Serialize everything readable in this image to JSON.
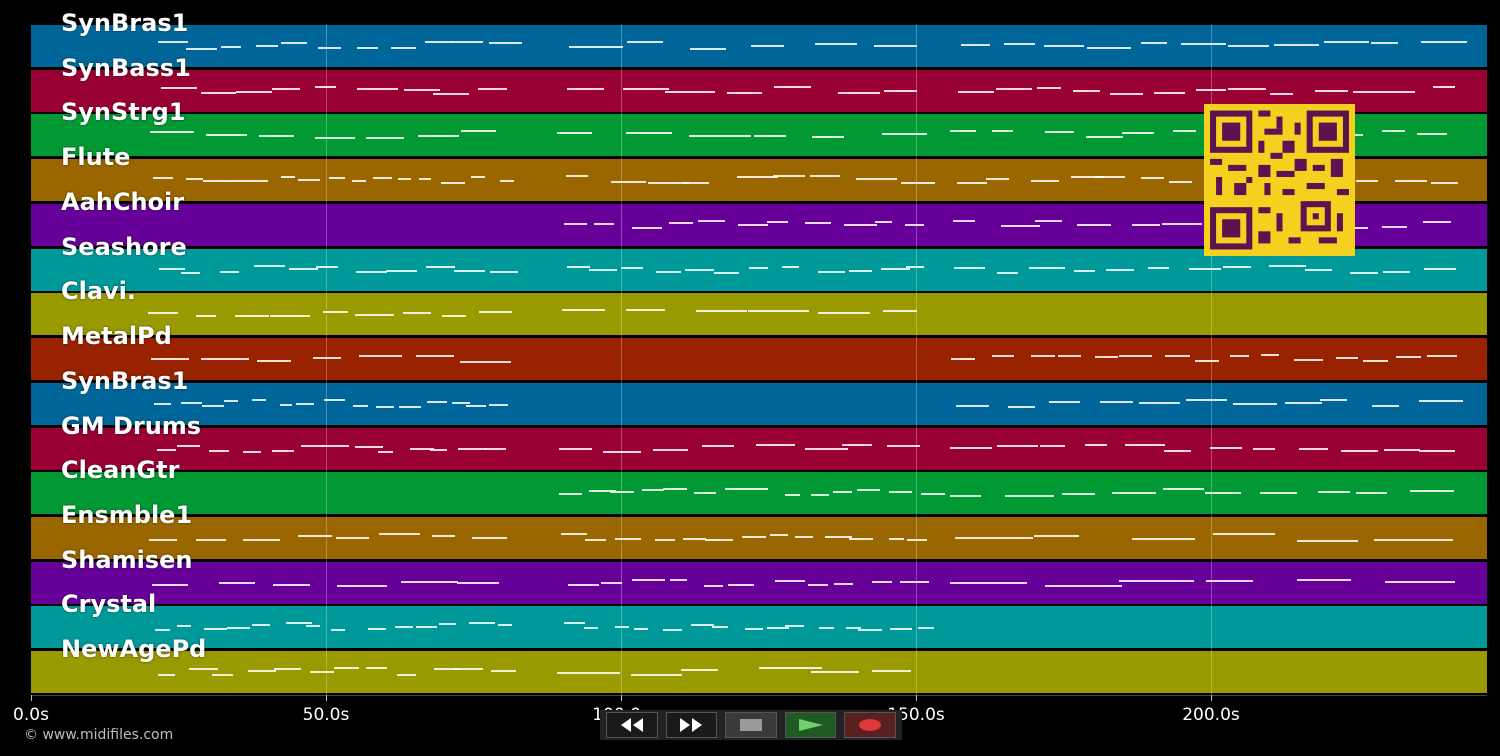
{
  "tracks": [
    {
      "name": "SynBras1",
      "color": "#006699"
    },
    {
      "name": "SynBass1",
      "color": "#990033"
    },
    {
      "name": "SynStrg1",
      "color": "#009933"
    },
    {
      "name": "Flute",
      "color": "#996600"
    },
    {
      "name": "AahChoir",
      "color": "#660099"
    },
    {
      "name": "Seashore",
      "color": "#009999"
    },
    {
      "name": "Clavi.",
      "color": "#999900"
    },
    {
      "name": "MetalPd",
      "color": "#992200"
    },
    {
      "name": "SynBras1",
      "color": "#006699"
    },
    {
      "name": "GM Drums",
      "color": "#990033"
    },
    {
      "name": "CleanGtr",
      "color": "#009933"
    },
    {
      "name": "Ensmble1",
      "color": "#996600"
    },
    {
      "name": "Shamisen",
      "color": "#660099"
    },
    {
      "name": "Crystal",
      "color": "#009999"
    },
    {
      "name": "NewAgePd",
      "color": "#999900"
    }
  ],
  "time_axis": {
    "ticks": [
      "0.0s",
      "50.0s",
      "100.0s",
      "150.0s",
      "200.0s"
    ]
  },
  "transport": {
    "rewind_icon": "rewind-icon",
    "fast_forward_icon": "fast-forward-icon",
    "stop_icon": "stop-icon",
    "play_icon": "play-icon",
    "record_icon": "record-icon"
  },
  "footer": {
    "copyright": "© www.midifiles.com"
  },
  "overlay": {
    "qr_icon": "qr-code-icon",
    "qr_color": "#f3d11e"
  }
}
